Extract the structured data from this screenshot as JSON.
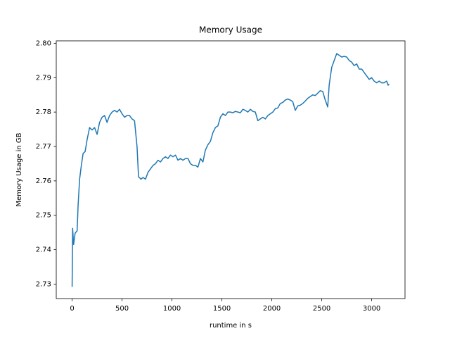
{
  "chart_data": {
    "type": "line",
    "title": "Memory Usage",
    "x_label": "runtime in s",
    "y_label": "Memory Usage in GB",
    "color": "#1f77b4",
    "x": [
      0,
      5,
      15,
      30,
      50,
      60,
      75,
      90,
      110,
      130,
      150,
      175,
      200,
      225,
      250,
      275,
      300,
      325,
      350,
      375,
      400,
      425,
      450,
      475,
      500,
      525,
      550,
      575,
      600,
      625,
      650,
      665,
      690,
      710,
      735,
      760,
      785,
      810,
      835,
      860,
      885,
      910,
      935,
      960,
      985,
      1010,
      1035,
      1060,
      1085,
      1110,
      1135,
      1160,
      1185,
      1210,
      1235,
      1260,
      1285,
      1310,
      1335,
      1360,
      1385,
      1410,
      1435,
      1460,
      1485,
      1510,
      1535,
      1560,
      1585,
      1610,
      1635,
      1660,
      1685,
      1710,
      1735,
      1760,
      1785,
      1810,
      1835,
      1860,
      1885,
      1910,
      1935,
      1960,
      1985,
      2010,
      2035,
      2060,
      2085,
      2110,
      2135,
      2160,
      2185,
      2210,
      2235,
      2260,
      2285,
      2310,
      2335,
      2360,
      2385,
      2410,
      2435,
      2460,
      2485,
      2510,
      2535,
      2560,
      2575,
      2600,
      2625,
      2650,
      2675,
      2700,
      2725,
      2750,
      2775,
      2800,
      2825,
      2850,
      2875,
      2900,
      2925,
      2950,
      2975,
      3000,
      3025,
      3050,
      3075,
      3100,
      3125,
      3150,
      3165,
      3175
    ],
    "values": [
      2.7292,
      2.7462,
      2.7415,
      2.7448,
      2.7455,
      2.753,
      2.7605,
      2.764,
      2.768,
      2.7685,
      2.772,
      2.7755,
      2.7748,
      2.7755,
      2.7735,
      2.777,
      2.7785,
      2.779,
      2.777,
      2.779,
      2.78,
      2.7805,
      2.78,
      2.7808,
      2.7795,
      2.7785,
      2.779,
      2.779,
      2.778,
      2.7775,
      2.77,
      2.7612,
      2.7605,
      2.761,
      2.7605,
      2.7625,
      2.7635,
      2.7645,
      2.765,
      2.766,
      2.7655,
      2.7665,
      2.767,
      2.7665,
      2.7675,
      2.767,
      2.7675,
      2.766,
      2.7665,
      2.766,
      2.7665,
      2.7665,
      2.765,
      2.7645,
      2.7645,
      2.764,
      2.7665,
      2.7655,
      2.769,
      2.7705,
      2.7715,
      2.774,
      2.7755,
      2.776,
      2.7785,
      2.7795,
      2.779,
      2.78,
      2.78,
      2.7798,
      2.7802,
      2.78,
      2.7798,
      2.7808,
      2.7805,
      2.78,
      2.7808,
      2.7802,
      2.78,
      2.7775,
      2.778,
      2.7785,
      2.778,
      2.779,
      2.7795,
      2.78,
      2.781,
      2.7812,
      2.7825,
      2.7828,
      2.7835,
      2.7838,
      2.7835,
      2.783,
      2.7805,
      2.7818,
      2.782,
      2.7825,
      2.7832,
      2.784,
      2.7845,
      2.785,
      2.7848,
      2.7855,
      2.7862,
      2.786,
      2.7835,
      2.7815,
      2.788,
      2.793,
      2.795,
      2.797,
      2.7965,
      2.796,
      2.7962,
      2.796,
      2.795,
      2.7945,
      2.7935,
      2.794,
      2.7925,
      2.7925,
      2.7915,
      2.7905,
      2.7895,
      2.79,
      2.789,
      2.7885,
      2.789,
      2.7885,
      2.7885,
      2.789,
      2.7878,
      2.7882
    ],
    "xlim": [
      -159,
      3334
    ],
    "xticks": [
      0,
      500,
      1000,
      1500,
      2000,
      2500,
      3000
    ],
    "ylim": [
      2.7258,
      2.8007
    ],
    "yticks": [
      2.73,
      2.74,
      2.75,
      2.76,
      2.77,
      2.78,
      2.79,
      {
        "value": 2.8,
        "label": "2.80"
      }
    ]
  }
}
